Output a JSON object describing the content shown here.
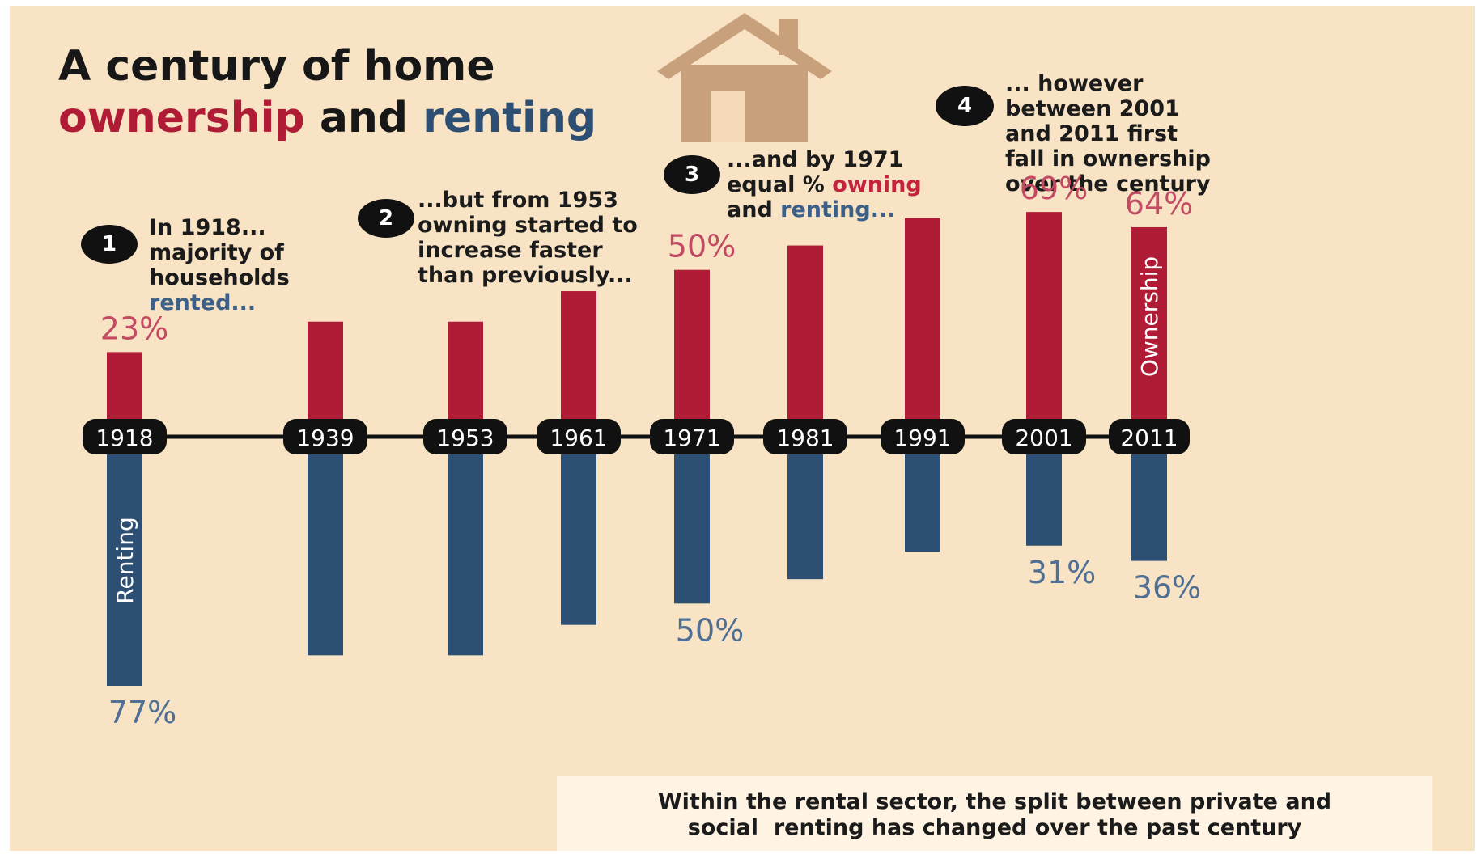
{
  "title": {
    "line1": "A century of home",
    "line2_own": "ownership",
    "line2_and": " and ",
    "line2_rent": "renting"
  },
  "notes": [
    {
      "number": "1",
      "text_a": "In 1918...",
      "text_b": "majority of",
      "text_c": "households",
      "text_d": "rented..."
    },
    {
      "number": "2",
      "text_a": "...but from 1953",
      "text_b": "owning started to",
      "text_c": "increase faster",
      "text_d": "than previously..."
    },
    {
      "number": "3",
      "text_a": "...and by 1971",
      "text_b": "equal % ",
      "text_b_own": "owning",
      "text_c": "and ",
      "text_c_rent": "renting..."
    },
    {
      "number": "4",
      "text_a": "... however",
      "text_b": "between 2001",
      "text_c": "and 2011 first",
      "text_d": "fall in ownership",
      "text_e": "over the century"
    }
  ],
  "footer": {
    "line1": "Within the rental sector, the split between private and",
    "line2": "social  renting has changed over the past century"
  },
  "colors": {
    "ownership": "#b01c35",
    "renting": "#2e4f74",
    "own_label": "#c24a62",
    "rent_label": "#4f6f95",
    "timeline": "#111111"
  },
  "chart_data": {
    "type": "bar",
    "categories": [
      "1918",
      "1939",
      "1953",
      "1961",
      "1971",
      "1981",
      "1991",
      "2001",
      "2011"
    ],
    "series": [
      {
        "name": "Ownership",
        "values": [
          23,
          33,
          33,
          43,
          50,
          58,
          67,
          69,
          64
        ],
        "labels": [
          "23%",
          "",
          "",
          "",
          "50%",
          "",
          "",
          "69%",
          "64%"
        ]
      },
      {
        "name": "Renting",
        "values": [
          77,
          67,
          67,
          57,
          50,
          42,
          33,
          31,
          36
        ],
        "labels": [
          "77%",
          "",
          "",
          "",
          "50%",
          "",
          "",
          "31%",
          "36%"
        ]
      }
    ],
    "title": "A century of home ownership and renting",
    "ylim": [
      0,
      77
    ],
    "grid": false,
    "legend": "none"
  }
}
